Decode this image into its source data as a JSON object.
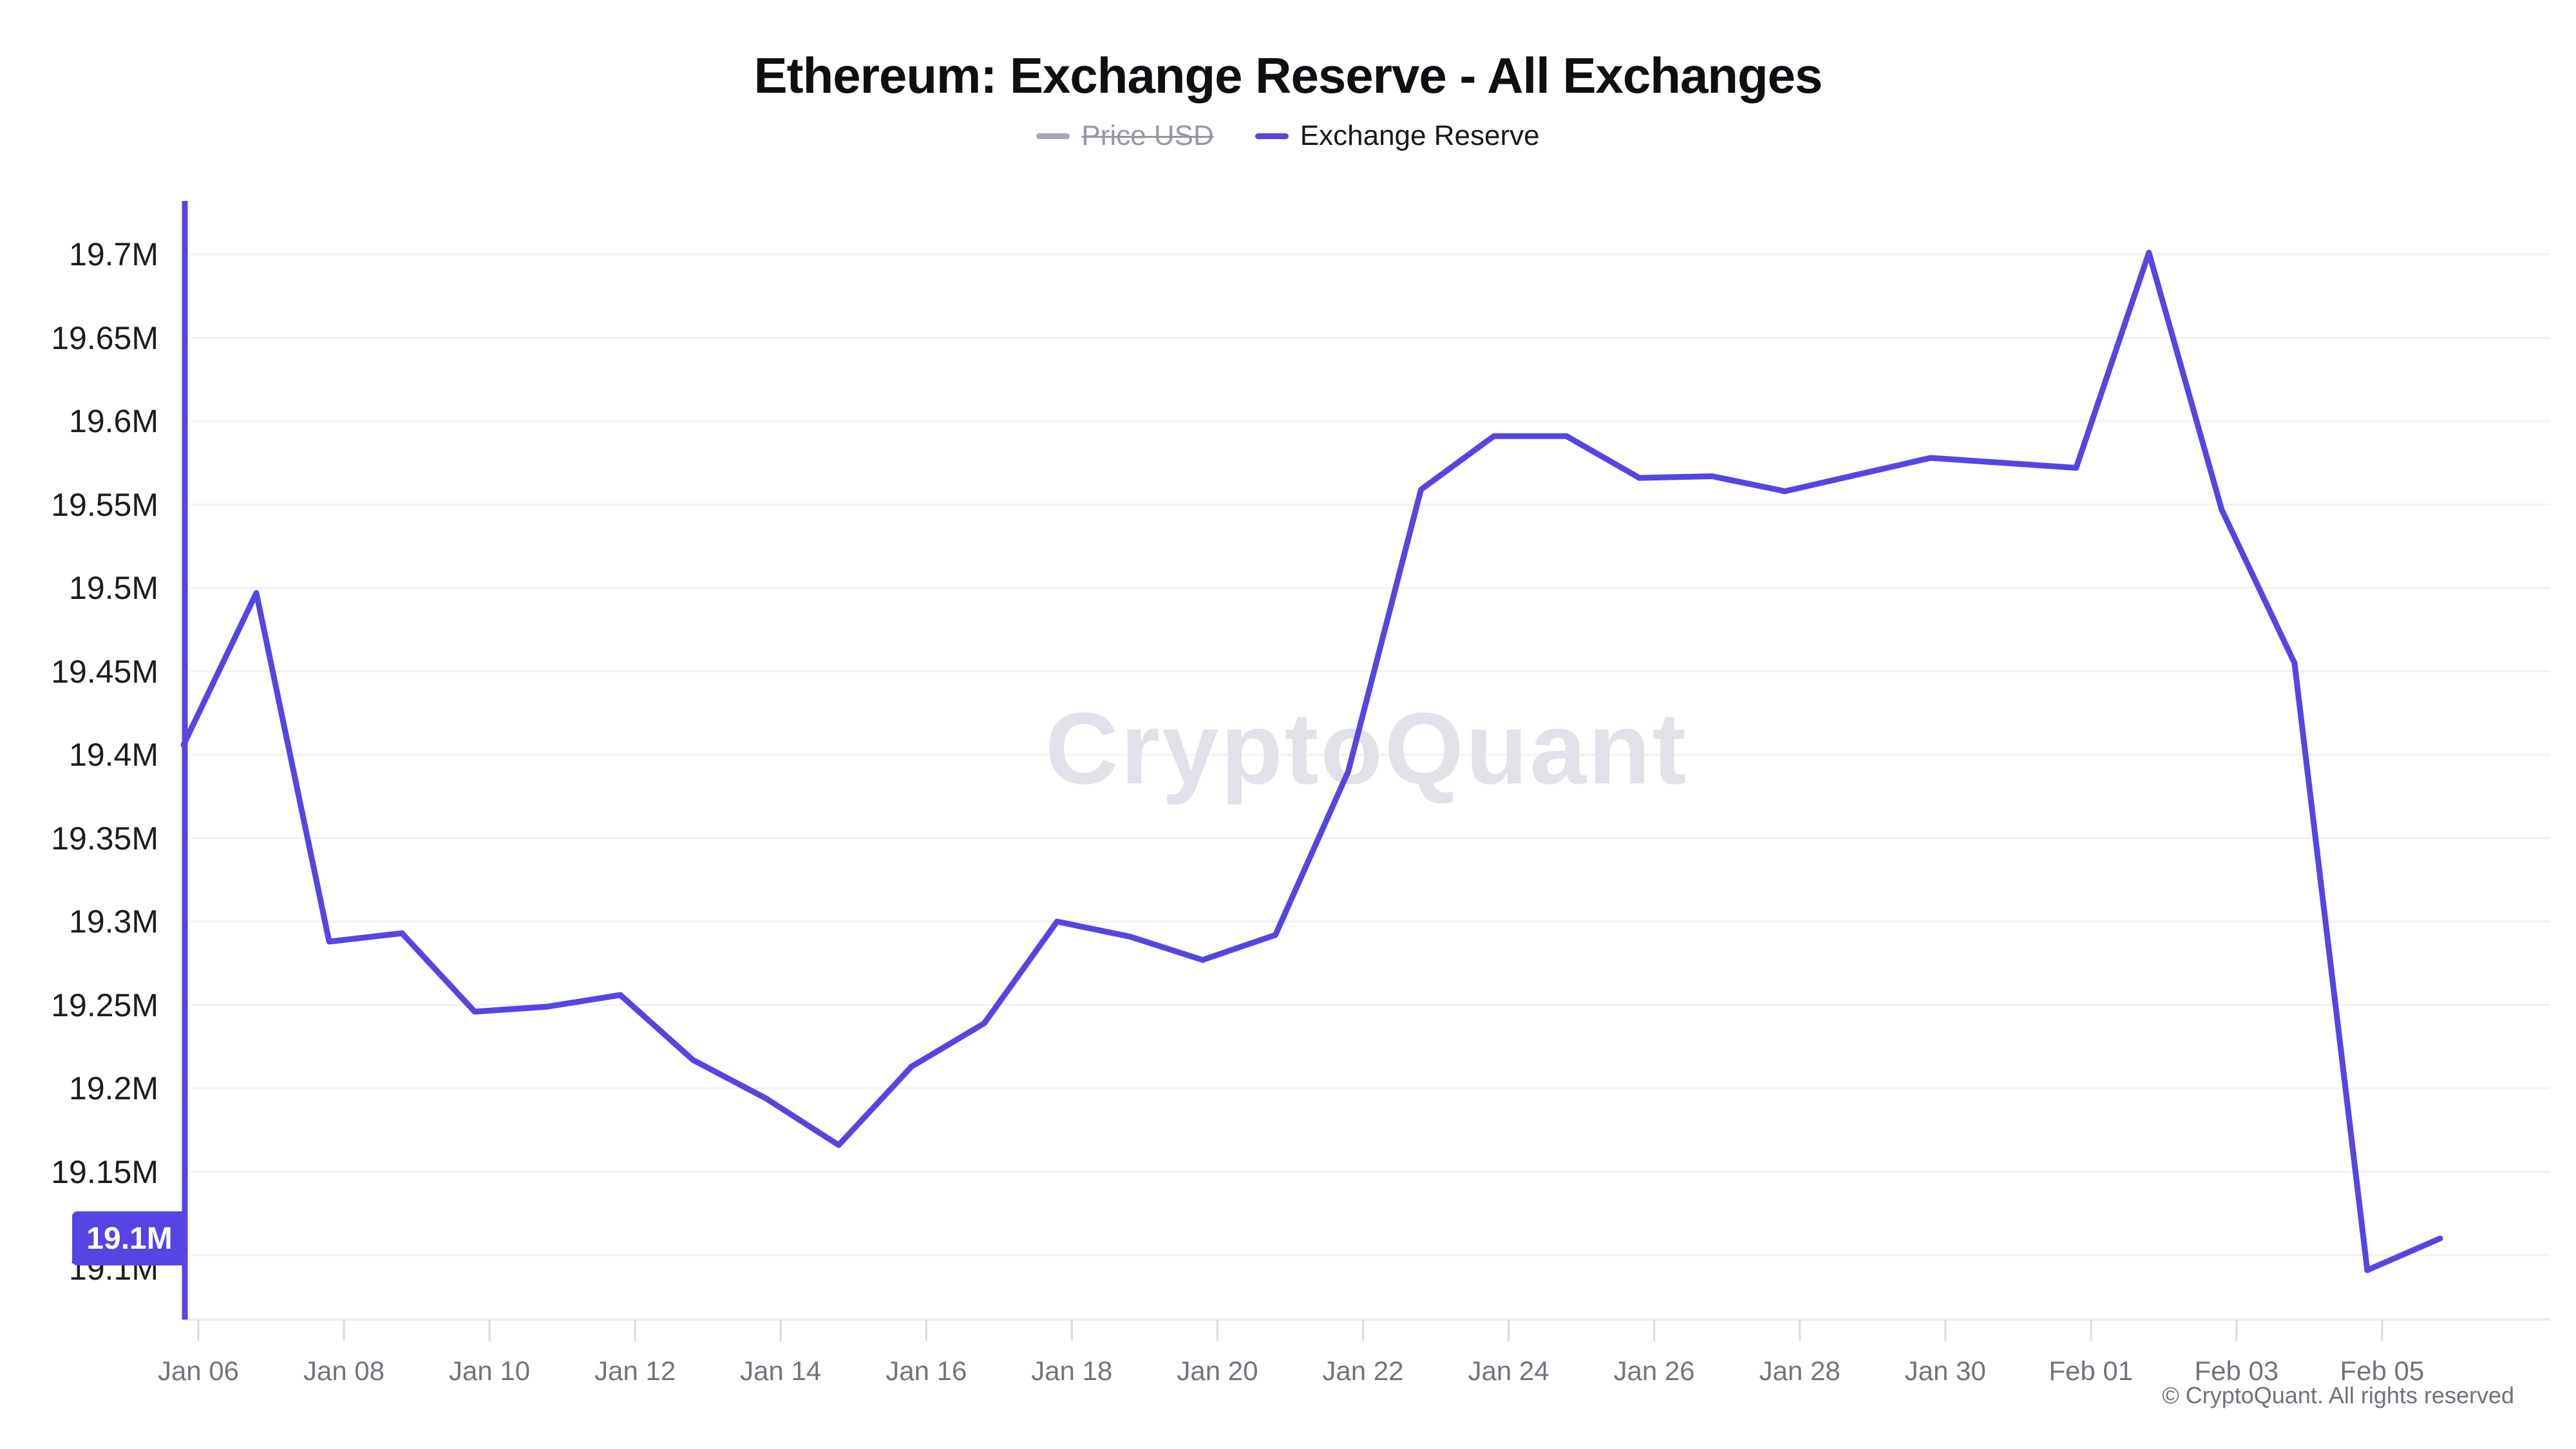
{
  "header": {
    "title": "Ethereum: Exchange Reserve - All Exchanges"
  },
  "legend": {
    "items": [
      {
        "label": "Price USD",
        "disabled": true,
        "color": "#a7a7b3"
      },
      {
        "label": "Exchange Reserve",
        "disabled": false,
        "color": "#5645e2"
      }
    ]
  },
  "watermark": "CryptoQuant",
  "footer": {
    "copyright": "© CryptoQuant. All rights reserved"
  },
  "y_axis": {
    "badge_label": "19.1M"
  },
  "chart_data": {
    "type": "line",
    "title": "Ethereum: Exchange Reserve - All Exchanges",
    "series_name": "Exchange Reserve",
    "unit": "million ETH",
    "x": [
      "Jan 06",
      "Jan 07",
      "Jan 08",
      "Jan 09",
      "Jan 10",
      "Jan 11",
      "Jan 12",
      "Jan 13",
      "Jan 14",
      "Jan 15",
      "Jan 16",
      "Jan 17",
      "Jan 18",
      "Jan 19",
      "Jan 20",
      "Jan 21",
      "Jan 22",
      "Jan 23",
      "Jan 24",
      "Jan 25",
      "Jan 26",
      "Jan 27",
      "Jan 28",
      "Jan 29",
      "Jan 30",
      "Jan 31",
      "Feb 01",
      "Feb 02",
      "Feb 03",
      "Feb 04",
      "Feb 05",
      "Feb 06"
    ],
    "values": [
      19.406,
      19.497,
      19.288,
      19.293,
      19.246,
      19.249,
      19.256,
      19.217,
      19.194,
      19.166,
      19.213,
      19.239,
      19.3,
      19.291,
      19.277,
      19.292,
      19.39,
      19.559,
      19.591,
      19.591,
      19.566,
      19.567,
      19.558,
      19.568,
      19.578,
      19.575,
      19.572,
      19.701,
      19.547,
      19.455,
      19.091,
      19.11
    ],
    "x_tick_labels": [
      "Jan 06",
      "Jan 08",
      "Jan 10",
      "Jan 12",
      "Jan 14",
      "Jan 16",
      "Jan 18",
      "Jan 20",
      "Jan 22",
      "Jan 24",
      "Jan 26",
      "Jan 28",
      "Jan 30",
      "Feb 01",
      "Feb 03",
      "Feb 05"
    ],
    "y_ticks": [
      19.1,
      19.15,
      19.2,
      19.25,
      19.3,
      19.35,
      19.4,
      19.45,
      19.5,
      19.55,
      19.6,
      19.65,
      19.7
    ],
    "ylim": [
      19.06,
      19.733
    ],
    "grid": true,
    "legend_position": "top",
    "line_color": "#5645e2",
    "grid_color": "#f2f2f5",
    "axis_line_color": "#ececf0",
    "tick_mark_color": "#d9d9e0",
    "current_value_label": "19.1M"
  }
}
